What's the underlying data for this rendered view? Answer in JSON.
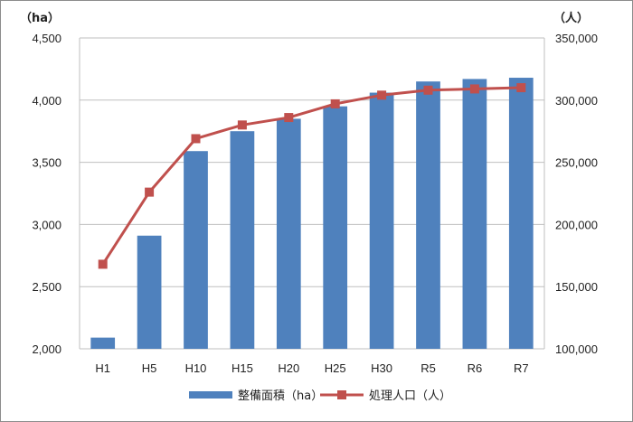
{
  "chart_data": {
    "type": "bar",
    "categories": [
      "H1",
      "H5",
      "H10",
      "H15",
      "H20",
      "H25",
      "H30",
      "R5",
      "R6",
      "R7"
    ],
    "series": [
      {
        "name": "整備面積（ha）",
        "type": "bar",
        "axis": "left",
        "color": "#4f81bd",
        "values": [
          2090,
          2910,
          3590,
          3750,
          3850,
          3950,
          4060,
          4150,
          4170,
          4180
        ]
      },
      {
        "name": "処理人口（人）",
        "type": "line",
        "axis": "right",
        "color": "#c0504d",
        "values": [
          168000,
          226000,
          269000,
          280000,
          286000,
          297000,
          304000,
          308000,
          309000,
          310000
        ]
      }
    ],
    "y_left": {
      "unit_label": "（ha）",
      "ylim": [
        2000,
        4500
      ],
      "ticks": [
        "2,000",
        "2,500",
        "3,000",
        "3,500",
        "4,000",
        "4,500"
      ]
    },
    "y_right": {
      "unit_label": "（人）",
      "ylim": [
        100000,
        350000
      ],
      "ticks": [
        "100,000",
        "150,000",
        "200,000",
        "250,000",
        "300,000",
        "350,000"
      ]
    },
    "grid": "horizontal",
    "legend_position": "bottom"
  }
}
